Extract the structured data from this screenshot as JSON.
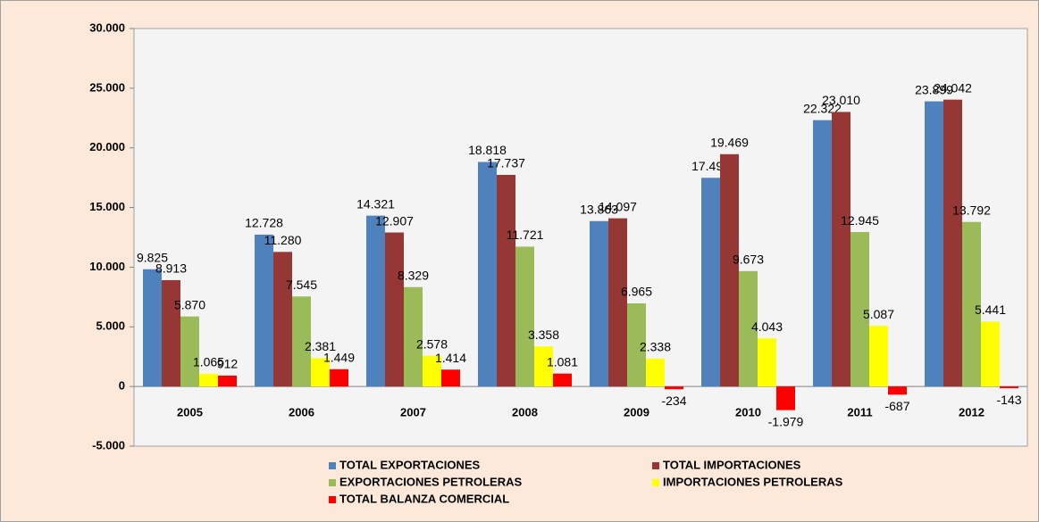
{
  "chart_data": {
    "type": "bar",
    "categories": [
      "2005",
      "2006",
      "2007",
      "2008",
      "2009",
      "2010",
      "2011",
      "2012"
    ],
    "series": [
      {
        "name": "TOTAL EXPORTACIONES",
        "color": "#4f81bd",
        "values": [
          9825,
          12728,
          14321,
          18818,
          13863,
          17490,
          22322,
          23899
        ],
        "value_labels": [
          "9.825",
          "12.728",
          "14.321",
          "18.818",
          "13.863",
          "17.490",
          "22.322",
          "23.899"
        ]
      },
      {
        "name": "TOTAL IMPORTACIONES",
        "color": "#953735",
        "values": [
          8913,
          11280,
          12907,
          17737,
          14097,
          19469,
          23010,
          24042
        ],
        "value_labels": [
          "8.913",
          "11.280",
          "12.907",
          "17.737",
          "14.097",
          "19.469",
          "23.010",
          "24.042"
        ]
      },
      {
        "name": "EXPORTACIONES PETROLERAS",
        "color": "#9bbb59",
        "values": [
          5870,
          7545,
          8329,
          11721,
          6965,
          9673,
          12945,
          13792
        ],
        "value_labels": [
          "5.870",
          "7.545",
          "8.329",
          "11.721",
          "6.965",
          "9.673",
          "12.945",
          "13.792"
        ]
      },
      {
        "name": "IMPORTACIONES PETROLERAS",
        "color": "#ffff00",
        "values": [
          1065,
          2381,
          2578,
          3358,
          2338,
          4043,
          5087,
          5441
        ],
        "value_labels": [
          "1.065",
          "2.381",
          "2.578",
          "3.358",
          "2.338",
          "4.043",
          "5.087",
          "5.441"
        ]
      },
      {
        "name": "TOTAL BALANZA COMERCIAL",
        "color": "#ff0000",
        "values": [
          912,
          1449,
          1414,
          1081,
          -234,
          -1979,
          -687,
          -143
        ],
        "value_labels": [
          "912",
          "1.449",
          "1.414",
          "1.081",
          "-234",
          "-1.979",
          "-687",
          "-143"
        ]
      }
    ],
    "ylim": [
      -5000,
      30000
    ],
    "yticks": [
      {
        "value": -5000,
        "label": "-5.000"
      },
      0,
      {
        "value": 5000,
        "label": "5.000"
      },
      {
        "value": 10000,
        "label": "10.000"
      },
      {
        "value": 15000,
        "label": "15.000"
      },
      {
        "value": 20000,
        "label": "20.000"
      },
      {
        "value": 25000,
        "label": "25.000"
      },
      {
        "value": 30000,
        "label": "30.000"
      }
    ],
    "grid": false
  }
}
